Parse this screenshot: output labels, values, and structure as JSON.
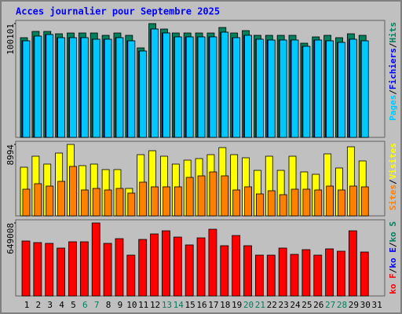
{
  "chart_data": [
    {
      "type": "bar",
      "title": "Acces journalier pour Septembre 2025",
      "categories": [
        "1",
        "2",
        "3",
        "4",
        "5",
        "6",
        "7",
        "8",
        "9",
        "10",
        "11",
        "12",
        "13",
        "14",
        "15",
        "16",
        "17",
        "18",
        "19",
        "20",
        "21",
        "22",
        "23",
        "24",
        "25",
        "26",
        "27",
        "28",
        "29",
        "30",
        "31"
      ],
      "ylim": [
        0,
        100101
      ],
      "yticks": [
        100101
      ],
      "separator": "/",
      "series": [
        {
          "name": "Hits",
          "color": "#00805c",
          "values": [
            87675,
            93198,
            93198,
            91124,
            91814,
            91814,
            91814,
            89746,
            91814,
            89746,
            78700,
            100101,
            95269,
            91814,
            91814,
            91814,
            91814,
            96649,
            91814,
            93888,
            89746,
            89746,
            89746,
            89746,
            82842,
            88365,
            89746,
            87675,
            91124,
            89746,
            null
          ]
        },
        {
          "name": "Fichiers",
          "color": "#0000ff",
          "values": [
            84914,
            89056,
            90437,
            87675,
            87675,
            87675,
            86294,
            86294,
            87675,
            84914,
            75939,
            95269,
            91814,
            88365,
            88365,
            88365,
            88365,
            92508,
            87675,
            89746,
            86294,
            85604,
            85604,
            85604,
            80081,
            85604,
            84914,
            83533,
            86294,
            84914,
            null
          ]
        },
        {
          "name": "Pages",
          "color": "#00c8ff",
          "values": [
            84914,
            89056,
            90437,
            87675,
            87675,
            87675,
            86294,
            86294,
            87675,
            84914,
            75939,
            95269,
            91814,
            88365,
            88365,
            88365,
            88365,
            92508,
            87675,
            89746,
            86294,
            85604,
            85604,
            85604,
            80081,
            85604,
            84914,
            83533,
            86294,
            84914,
            null
          ]
        }
      ]
    },
    {
      "type": "bar",
      "categories": [
        "1",
        "2",
        "3",
        "4",
        "5",
        "6",
        "7",
        "8",
        "9",
        "10",
        "11",
        "12",
        "13",
        "14",
        "15",
        "16",
        "17",
        "18",
        "19",
        "20",
        "21",
        "22",
        "23",
        "24",
        "25",
        "26",
        "27",
        "28",
        "29",
        "30",
        "31"
      ],
      "ylim": [
        0,
        8994
      ],
      "yticks": [
        8994
      ],
      "series": [
        {
          "name": "Visites",
          "color": "#ffff00",
          "values": [
            6128,
            7512,
            6523,
            7907,
            8994,
            6326,
            6523,
            5831,
            5831,
            3459,
            7709,
            8203,
            7512,
            6523,
            7017,
            7215,
            7709,
            8599,
            7709,
            7314,
            5732,
            7512,
            5732,
            7512,
            5535,
            5238,
            7808,
            6029,
            8698,
            6919,
            null
          ]
        },
        {
          "name": "Sites",
          "color": "#ff8000",
          "values": [
            3360,
            4052,
            3756,
            4349,
            6227,
            3262,
            3459,
            3262,
            3459,
            2866,
            4250,
            3657,
            3657,
            3657,
            4843,
            5041,
            5535,
            5041,
            3262,
            3657,
            2768,
            3163,
            2669,
            3360,
            3360,
            3262,
            3756,
            3262,
            3756,
            3657,
            null
          ]
        }
      ]
    },
    {
      "type": "bar",
      "categories": [
        "1",
        "2",
        "3",
        "4",
        "5",
        "6",
        "7",
        "8",
        "9",
        "10",
        "11",
        "12",
        "13",
        "14",
        "15",
        "16",
        "17",
        "18",
        "19",
        "20",
        "21",
        "22",
        "23",
        "24",
        "25",
        "26",
        "27",
        "28",
        "29",
        "30",
        "31"
      ],
      "category_colors": [
        "#000000",
        "#000000",
        "#000000",
        "#000000",
        "#000000",
        "#00805c",
        "#00805c",
        "#000000",
        "#000000",
        "#000000",
        "#000000",
        "#000000",
        "#00805c",
        "#00805c",
        "#000000",
        "#000000",
        "#000000",
        "#000000",
        "#000000",
        "#00805c",
        "#00805c",
        "#000000",
        "#000000",
        "#000000",
        "#000000",
        "#000000",
        "#00805c",
        "#00805c",
        "#000000",
        "#000000",
        "#000000"
      ],
      "ylim": [
        0,
        649008
      ],
      "yticks": [
        649008
      ],
      "series": [
        {
          "name": "ko F",
          "color": "#ff0000",
          "values": [
            488504,
            474547,
            467568,
            425693,
            481525,
            481525,
            649008,
            467568,
            509438,
            362888,
            502460,
            551308,
            579222,
            523398,
            453611,
            516417,
            593178,
            446632,
            537350,
            446632,
            362888,
            362888,
            425693,
            369865,
            411737,
            362888,
            418719,
            397782,
            579222,
            390803,
            null
          ]
        }
      ],
      "legend_extra": [
        {
          "name": "ko E",
          "color": "#0000ff"
        },
        {
          "name": "ko S",
          "color": "#00805c"
        }
      ]
    }
  ]
}
